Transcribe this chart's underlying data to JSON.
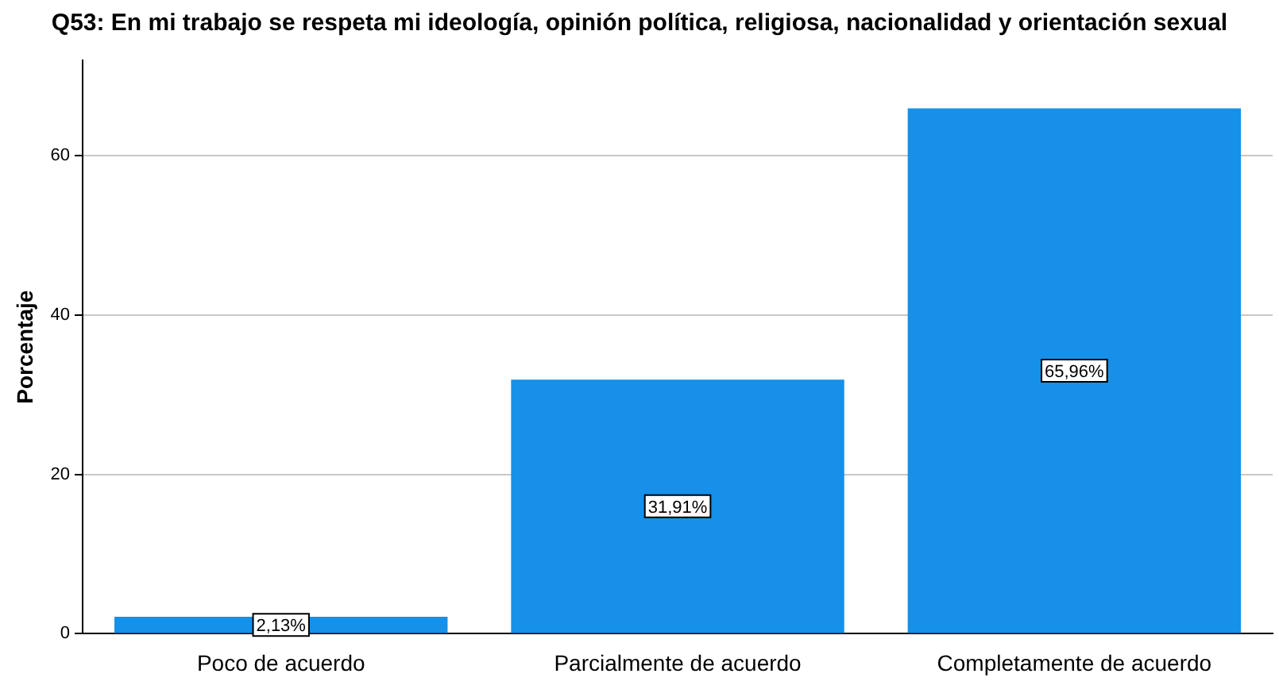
{
  "chart_data": {
    "type": "bar",
    "title": "Q53: En mi trabajo se respeta mi ideología, opinión política, religiosa, nacionalidad y orientación sexual",
    "ylabel": "Porcentaje",
    "categories": [
      "Poco de acuerdo",
      "Parcialmente de acuerdo",
      "Completamente de acuerdo"
    ],
    "values": [
      2.13,
      31.91,
      65.96
    ],
    "color": "#1690e8",
    "value_labels": [
      "2,13%",
      "31,91%",
      "65,96%"
    ],
    "ylim": [
      0,
      72
    ],
    "yticks": [
      0,
      20,
      40,
      60
    ],
    "grid": "y",
    "legend": false
  }
}
